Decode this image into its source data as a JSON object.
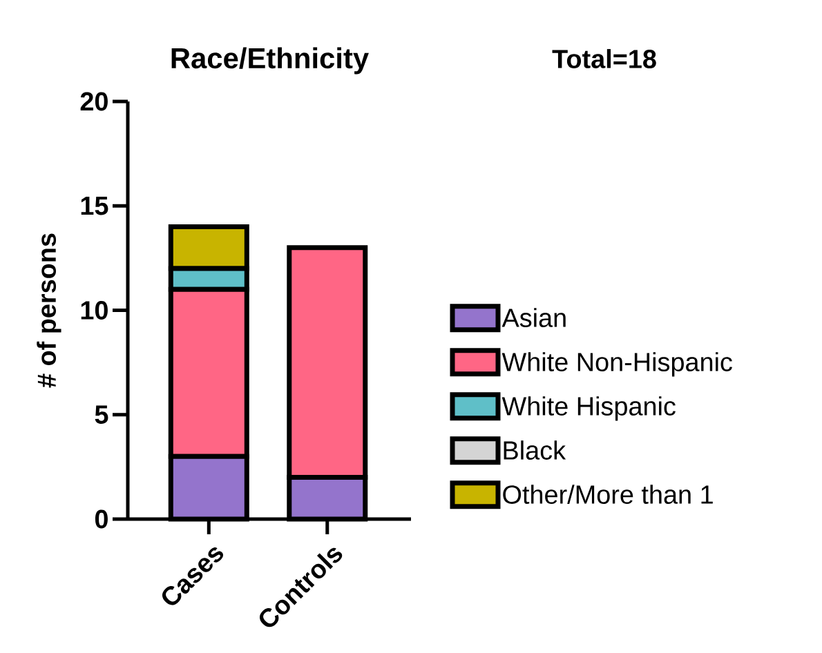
{
  "chart_data": {
    "type": "bar",
    "title": "Race/Ethnicity",
    "ylabel": "# of persons",
    "stacked": true,
    "categories": [
      "Cases",
      "Controls"
    ],
    "series": [
      {
        "name": "Asian",
        "color": "#9474cc",
        "values": [
          3,
          2
        ]
      },
      {
        "name": "White Non-Hispanic",
        "color": "#ff6685",
        "values": [
          8,
          11
        ]
      },
      {
        "name": "White Hispanic",
        "color": "#5fbfc8",
        "values": [
          1,
          0
        ]
      },
      {
        "name": "Black",
        "color": "#d4d4d4",
        "values": [
          0,
          0
        ]
      },
      {
        "name": "Other/More than 1",
        "color": "#c8b400",
        "values": [
          2,
          0
        ]
      }
    ],
    "ylim": [
      0,
      20
    ],
    "yticks": [
      0,
      5,
      10,
      15,
      20
    ],
    "legend": "right",
    "grid": false,
    "annotations": [
      "Total=18"
    ]
  }
}
